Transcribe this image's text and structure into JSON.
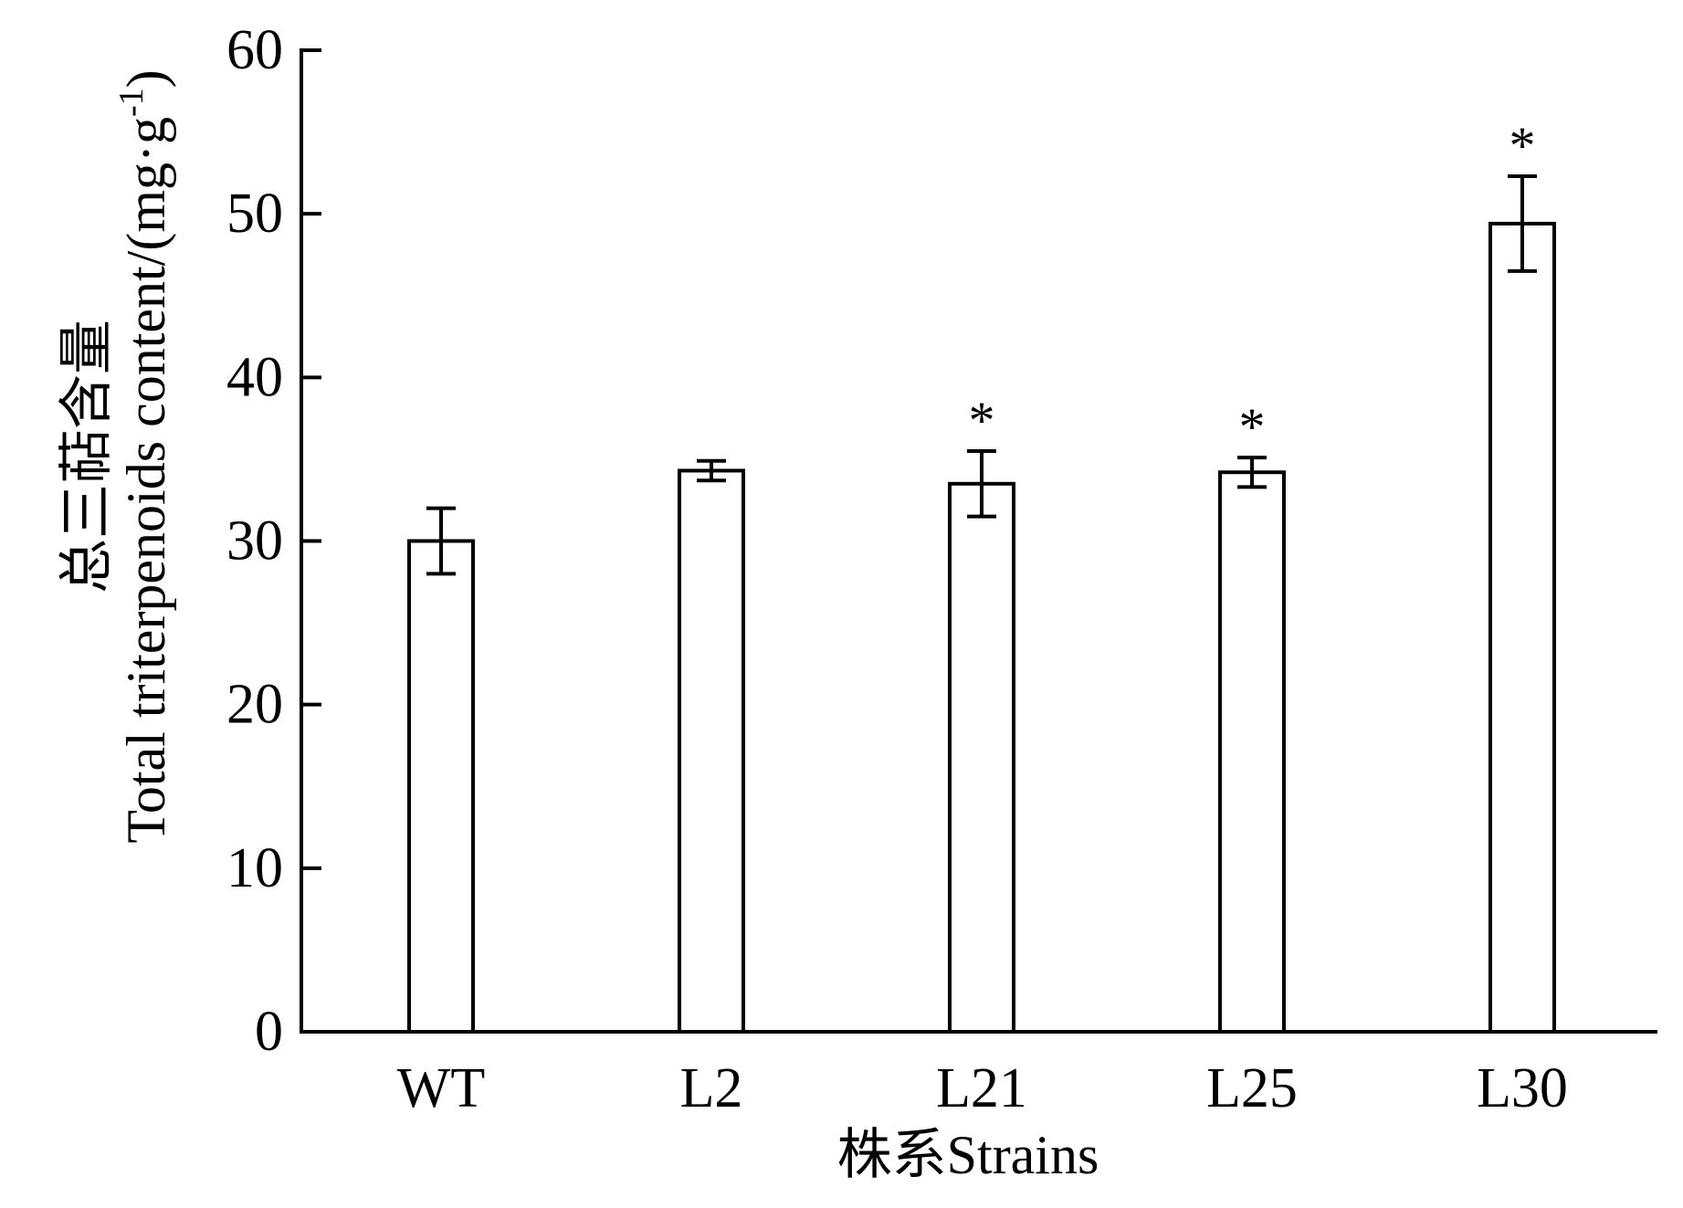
{
  "chart_data": {
    "type": "bar",
    "categories": [
      "WT",
      "L2",
      "L21",
      "L25",
      "L30"
    ],
    "values": [
      30.0,
      34.3,
      33.5,
      34.2,
      49.4
    ],
    "errors": [
      2.0,
      0.6,
      2.0,
      0.9,
      2.9
    ],
    "significance": [
      "",
      "",
      "*",
      "*",
      "*"
    ],
    "xlabel": "株系Strains",
    "ylabel_line1": "总三萜含量",
    "ylabel_line2_main": "Total triterpenoids content/(mg·g",
    "ylabel_line2_sup": "-1",
    "ylabel_line2_end": ")",
    "ylim": [
      0,
      60
    ],
    "yticks": [
      0,
      10,
      20,
      30,
      40,
      50,
      60
    ],
    "bar_fill": "#ffffff",
    "bar_stroke": "#000000",
    "grid": false,
    "legend": "none"
  }
}
